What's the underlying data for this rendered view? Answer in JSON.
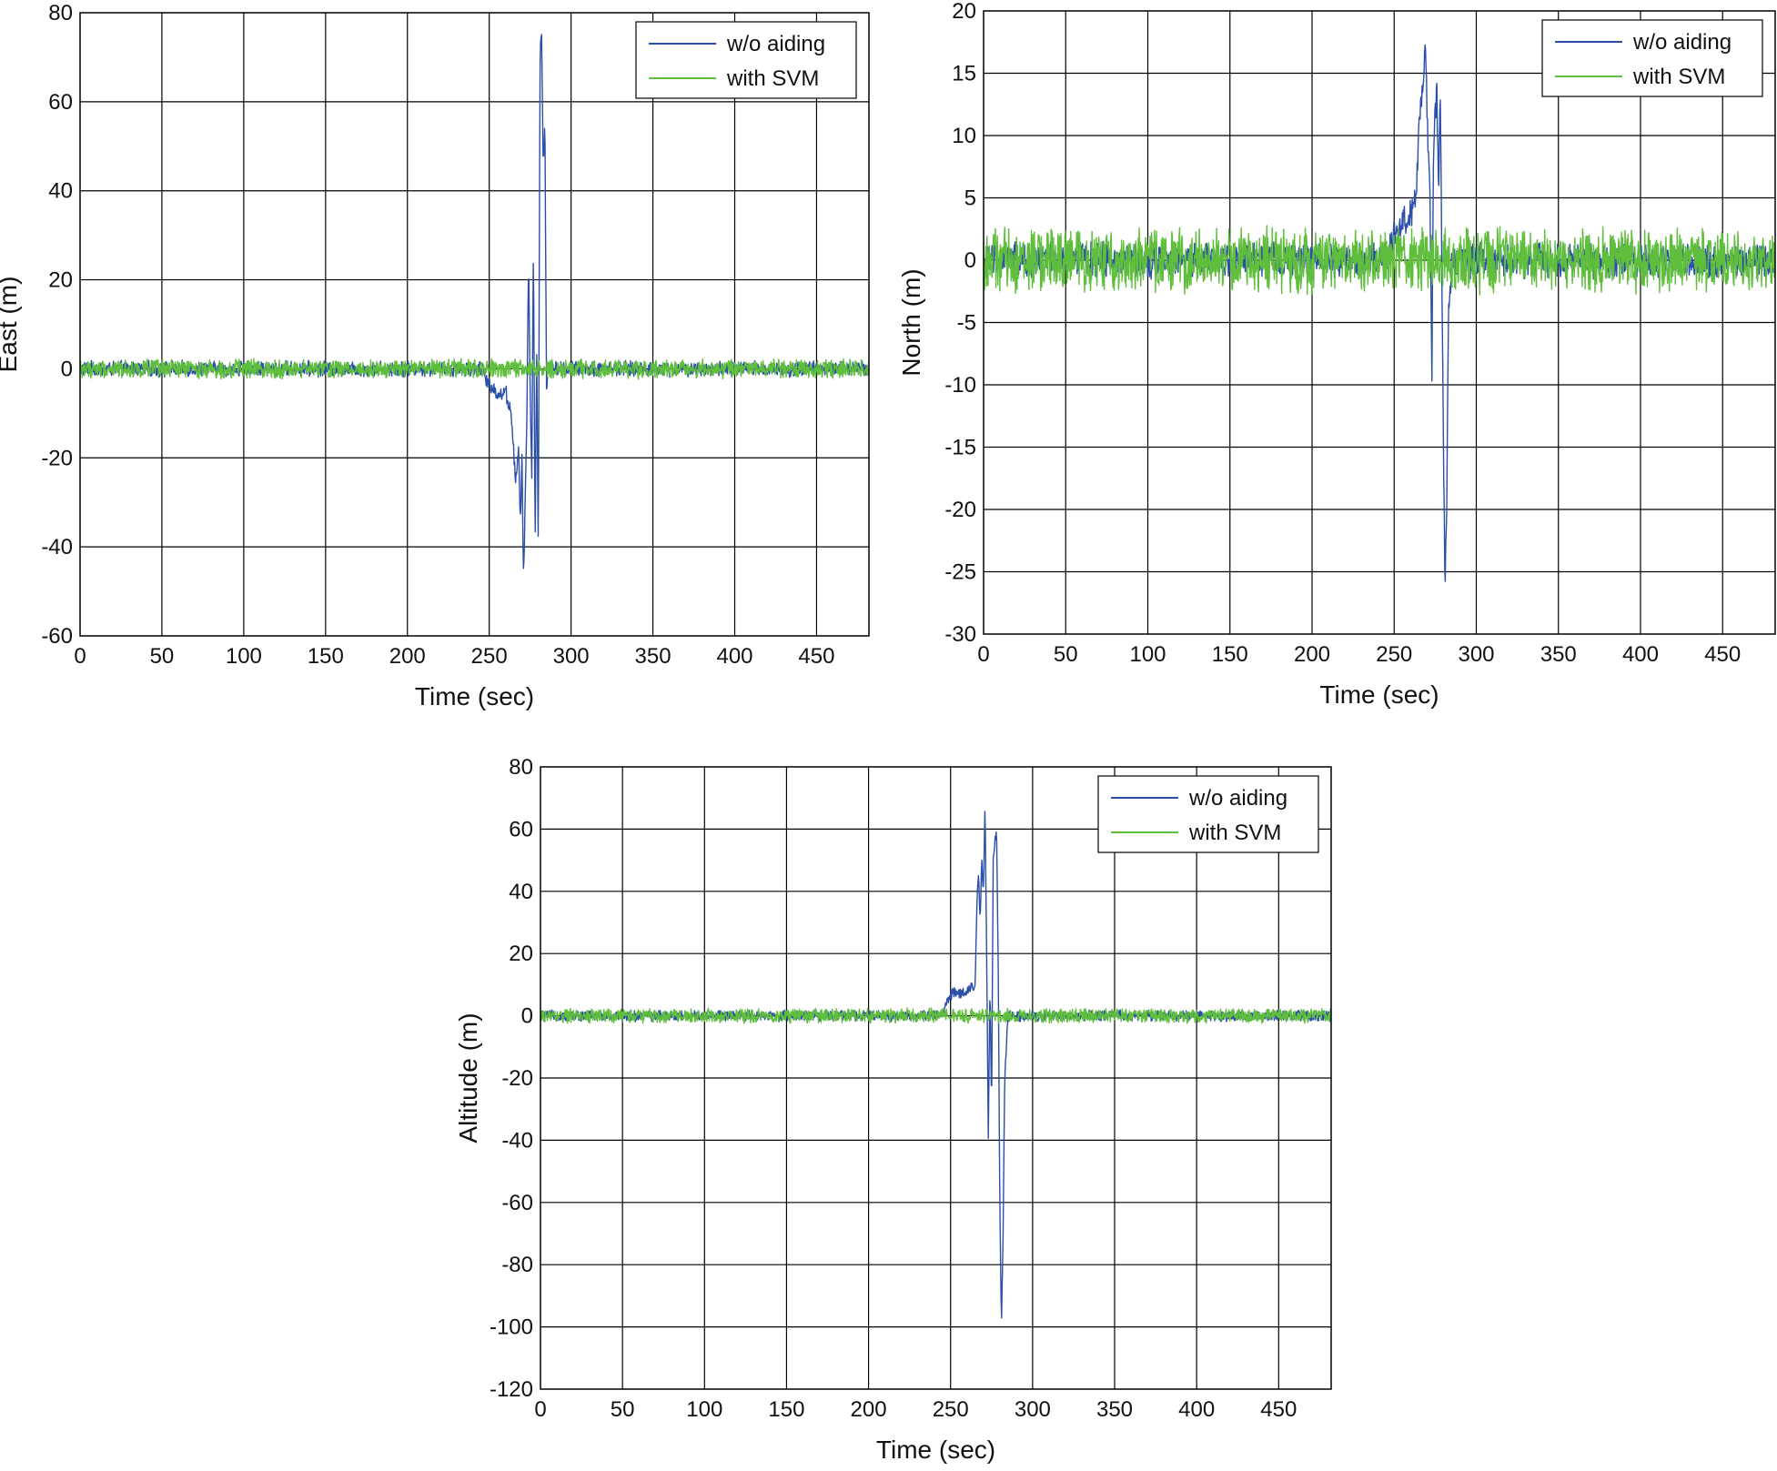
{
  "colors": {
    "w_o_aiding": "#2b4fa8",
    "with_svm": "#5fbe3c",
    "grid": "#000000",
    "background": "#ffffff"
  },
  "chart_data": [
    {
      "id": "east",
      "type": "line",
      "title": "",
      "xlabel": "Time (sec)",
      "ylabel": "East (m)",
      "xlim": [
        0,
        482
      ],
      "ylim": [
        -60,
        80
      ],
      "xticks": [
        0,
        50,
        100,
        150,
        200,
        250,
        300,
        350,
        400,
        450
      ],
      "yticks": [
        -60,
        -40,
        -20,
        0,
        20,
        40,
        60,
        80
      ],
      "grid": true,
      "legend": "top-right",
      "series": [
        {
          "name": "w/o aiding",
          "color": "#2b4fa8",
          "noise_amplitude": 1.5,
          "events": [
            [
              0,
              0
            ],
            [
              246,
              0
            ],
            [
              248,
              -3
            ],
            [
              252,
              -4
            ],
            [
              256,
              -6
            ],
            [
              260,
              -5
            ],
            [
              262,
              -8
            ],
            [
              264,
              -12
            ],
            [
              266,
              -26
            ],
            [
              268,
              -18
            ],
            [
              269,
              -35
            ],
            [
              270,
              -20
            ],
            [
              271,
              -48
            ],
            [
              272,
              -30
            ],
            [
              273,
              -10
            ],
            [
              274,
              25
            ],
            [
              275,
              -5
            ],
            [
              276,
              -25
            ],
            [
              277,
              30
            ],
            [
              278,
              -40
            ],
            [
              279,
              5
            ],
            [
              280,
              -43
            ],
            [
              281,
              70
            ],
            [
              282,
              76
            ],
            [
              283,
              45
            ],
            [
              284,
              55
            ],
            [
              285,
              -5
            ],
            [
              286,
              0
            ],
            [
              482,
              0
            ]
          ]
        },
        {
          "name": "with SVM",
          "color": "#5fbe3c",
          "noise_amplitude": 1.8,
          "events": [
            [
              0,
              0
            ],
            [
              482,
              0
            ]
          ]
        }
      ]
    },
    {
      "id": "north",
      "type": "line",
      "title": "",
      "xlabel": "Time (sec)",
      "ylabel": "North (m)",
      "xlim": [
        0,
        482
      ],
      "ylim": [
        -30,
        20
      ],
      "xticks": [
        0,
        50,
        100,
        150,
        200,
        250,
        300,
        350,
        400,
        450
      ],
      "yticks": [
        -30,
        -25,
        -20,
        -15,
        -10,
        -5,
        0,
        5,
        10,
        15,
        20
      ],
      "grid": true,
      "legend": "top-right",
      "series": [
        {
          "name": "w/o aiding",
          "color": "#2b4fa8",
          "noise_amplitude": 1.2,
          "events": [
            [
              0,
              0
            ],
            [
              245,
              0
            ],
            [
              250,
              2
            ],
            [
              255,
              3
            ],
            [
              260,
              3.5
            ],
            [
              263,
              5
            ],
            [
              265,
              10
            ],
            [
              267,
              13
            ],
            [
              269,
              17
            ],
            [
              270,
              12
            ],
            [
              271,
              8
            ],
            [
              272,
              4
            ],
            [
              273,
              -9
            ],
            [
              274,
              9
            ],
            [
              276,
              14
            ],
            [
              277,
              5
            ],
            [
              278,
              15
            ],
            [
              279,
              0
            ],
            [
              280,
              -15
            ],
            [
              281,
              -26
            ],
            [
              282,
              -20
            ],
            [
              283,
              -5
            ],
            [
              285,
              0
            ],
            [
              482,
              0
            ]
          ]
        },
        {
          "name": "with SVM",
          "color": "#5fbe3c",
          "noise_amplitude": 2.2,
          "events": [
            [
              0,
              0
            ],
            [
              482,
              0
            ]
          ]
        }
      ]
    },
    {
      "id": "altitude",
      "type": "line",
      "title": "",
      "xlabel": "Time (sec)",
      "ylabel": "Altitude (m)",
      "xlim": [
        0,
        482
      ],
      "ylim": [
        -120,
        80
      ],
      "xticks": [
        0,
        50,
        100,
        150,
        200,
        250,
        300,
        350,
        400,
        450
      ],
      "yticks": [
        -120,
        -100,
        -80,
        -60,
        -40,
        -20,
        0,
        20,
        40,
        60,
        80
      ],
      "grid": true,
      "legend": "top-right",
      "series": [
        {
          "name": "w/o aiding",
          "color": "#2b4fa8",
          "noise_amplitude": 1.5,
          "events": [
            [
              0,
              0
            ],
            [
              245,
              0
            ],
            [
              248,
              5
            ],
            [
              252,
              8
            ],
            [
              256,
              7
            ],
            [
              260,
              8
            ],
            [
              265,
              10
            ],
            [
              266,
              35
            ],
            [
              267,
              45
            ],
            [
              268,
              30
            ],
            [
              269,
              50
            ],
            [
              270,
              40
            ],
            [
              271,
              68
            ],
            [
              272,
              20
            ],
            [
              273,
              -38
            ],
            [
              274,
              10
            ],
            [
              275,
              -30
            ],
            [
              276,
              50
            ],
            [
              277,
              55
            ],
            [
              278,
              60
            ],
            [
              279,
              20
            ],
            [
              280,
              -60
            ],
            [
              281,
              -101
            ],
            [
              282,
              -70
            ],
            [
              283,
              -20
            ],
            [
              285,
              0
            ],
            [
              482,
              0
            ]
          ]
        },
        {
          "name": "with SVM",
          "color": "#5fbe3c",
          "noise_amplitude": 2.0,
          "events": [
            [
              0,
              0
            ],
            [
              482,
              0
            ]
          ]
        }
      ]
    }
  ]
}
